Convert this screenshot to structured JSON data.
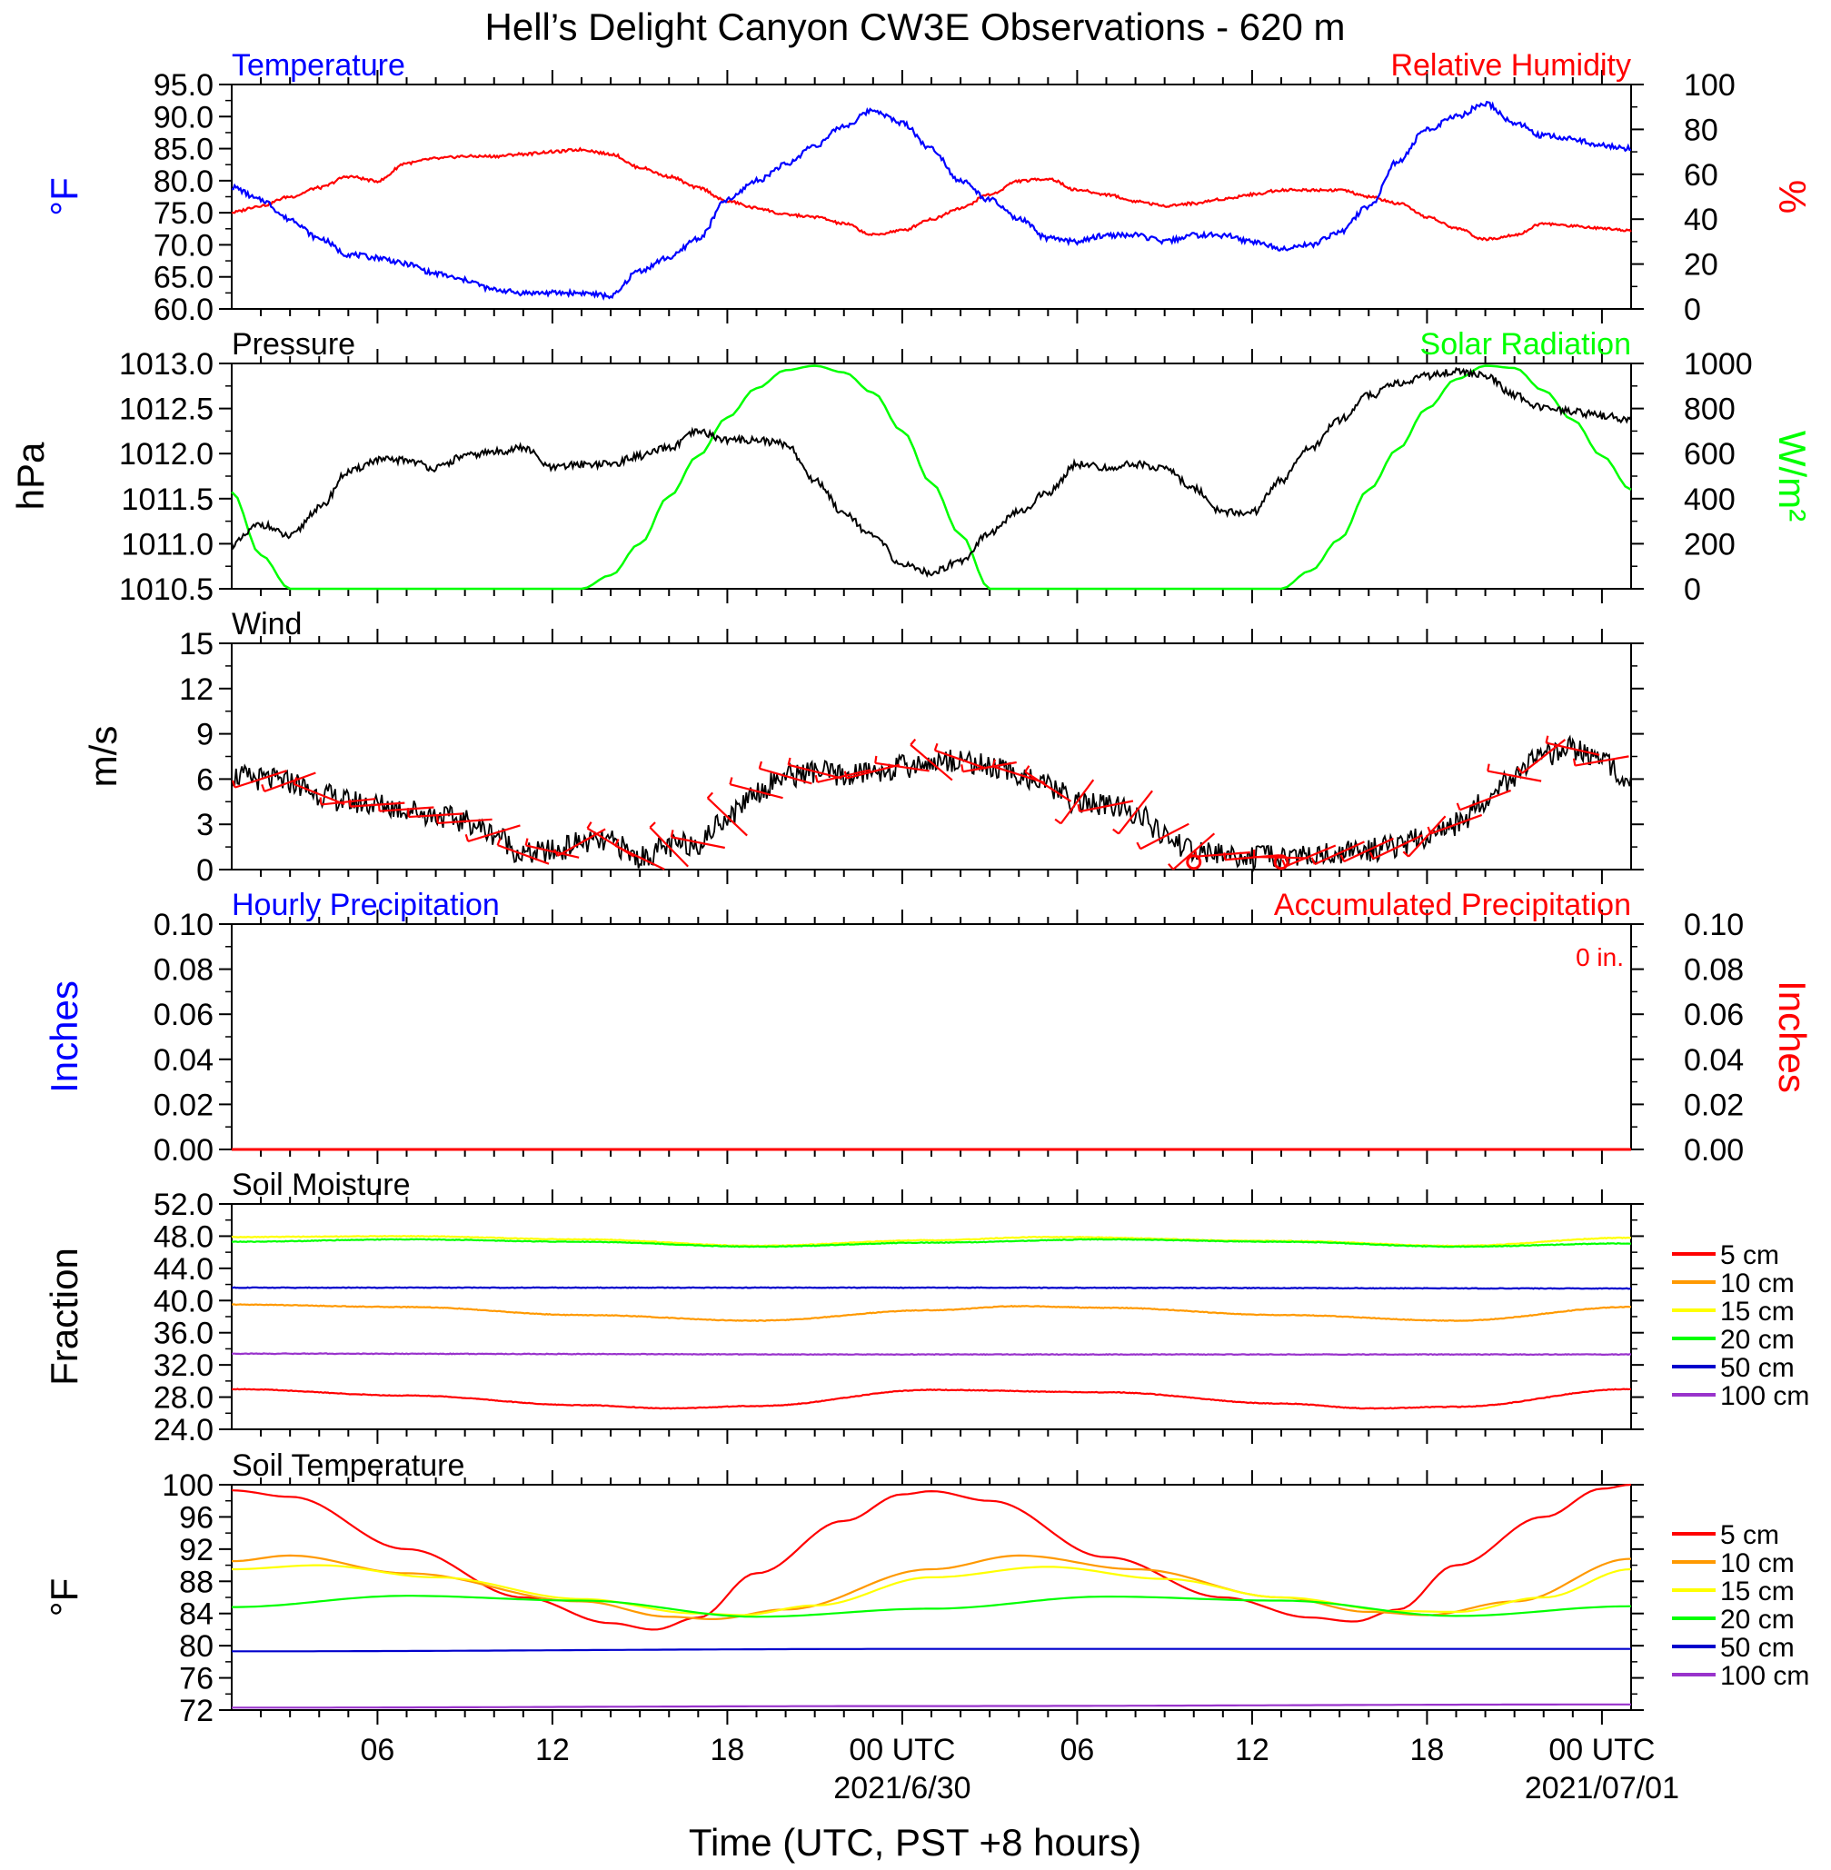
{
  "title": "Hell’s Delight Canyon CW3E Observations - 620 m",
  "xlabel": "Time (UTC, PST +8 hours)",
  "x_ticks": [
    "06",
    "12",
    "18",
    "00 UTC",
    "06",
    "12",
    "18",
    "00 UTC"
  ],
  "x_tick_hours": [
    6,
    12,
    18,
    24,
    30,
    36,
    42,
    48
  ],
  "date_labels": [
    {
      "hour": 24,
      "text": "2021/6/30"
    },
    {
      "hour": 48,
      "text": "2021/07/01"
    }
  ],
  "colors": {
    "temperature": "#0000ff",
    "humidity": "#ff0000",
    "pressure": "#000000",
    "solar": "#00ff00",
    "wind": "#000000",
    "wind_barbs": "#ff0000",
    "precip_hourly": "#0000ff",
    "precip_accum": "#ff0000"
  },
  "panels": {
    "temp_rh": {
      "left_title": "Temperature",
      "right_title": "Relative Humidity",
      "left_unit": "°F",
      "right_unit": "%",
      "left_ticks": [
        "95.0",
        "90.0",
        "85.0",
        "80.0",
        "75.0",
        "70.0",
        "65.0",
        "60.0"
      ],
      "right_ticks": [
        "100",
        "80",
        "60",
        "40",
        "20",
        "0"
      ]
    },
    "pressure_solar": {
      "left_title": "Pressure",
      "right_title": "Solar Radiation",
      "left_unit": "hPa",
      "right_unit": "W/m²",
      "left_ticks": [
        "1013.0",
        "1012.5",
        "1012.0",
        "1011.5",
        "1011.0",
        "1010.5"
      ],
      "right_ticks": [
        "1000",
        "800",
        "600",
        "400",
        "200",
        "0"
      ]
    },
    "wind": {
      "left_title": "Wind",
      "left_unit": "m/s",
      "left_ticks": [
        "15",
        "12",
        "9",
        "6",
        "3",
        "0"
      ]
    },
    "precip": {
      "left_title": "Hourly Precipitation",
      "right_title": "Accumulated Precipitation",
      "total_label": "0 in.",
      "left_unit": "Inches",
      "right_unit": "Inches",
      "left_ticks": [
        "0.10",
        "0.08",
        "0.06",
        "0.04",
        "0.02",
        "0.00"
      ],
      "right_ticks": [
        "0.10",
        "0.08",
        "0.06",
        "0.04",
        "0.02",
        "0.00"
      ]
    },
    "soil_moisture": {
      "left_title": "Soil Moisture",
      "left_unit": "Fraction",
      "left_ticks": [
        "52.0",
        "48.0",
        "44.0",
        "40.0",
        "36.0",
        "32.0",
        "28.0",
        "24.0"
      ],
      "legend": [
        {
          "label": "5 cm",
          "color": "#ff0000"
        },
        {
          "label": "10 cm",
          "color": "#ff9900"
        },
        {
          "label": "15 cm",
          "color": "#ffff00"
        },
        {
          "label": "20 cm",
          "color": "#00ff00"
        },
        {
          "label": "50 cm",
          "color": "#0000cc"
        },
        {
          "label": "100 cm",
          "color": "#9933cc"
        }
      ]
    },
    "soil_temp": {
      "left_title": "Soil Temperature",
      "left_unit": "°F",
      "left_ticks": [
        "100",
        "96",
        "92",
        "88",
        "84",
        "80",
        "76",
        "72"
      ],
      "legend": [
        {
          "label": "5 cm",
          "color": "#ff0000"
        },
        {
          "label": "10 cm",
          "color": "#ff9900"
        },
        {
          "label": "15 cm",
          "color": "#ffff00"
        },
        {
          "label": "20 cm",
          "color": "#00ff00"
        },
        {
          "label": "50 cm",
          "color": "#0000cc"
        },
        {
          "label": "100 cm",
          "color": "#9933cc"
        }
      ]
    }
  },
  "chart_data": [
    {
      "type": "line",
      "title": "Temperature / Relative Humidity",
      "x_unit": "hours from 2021-06-29 01 UTC",
      "xlim": [
        1,
        49
      ],
      "series": [
        {
          "name": "Temperature",
          "axis": "left",
          "ylim": [
            60,
            95
          ],
          "x": [
            1,
            2,
            3,
            4,
            5,
            6,
            7,
            8,
            9,
            10,
            11,
            12,
            13,
            14,
            15,
            16,
            17,
            18,
            19,
            20,
            21,
            22,
            23,
            24,
            25,
            26,
            27,
            28,
            29,
            30,
            31,
            32,
            33,
            34,
            35,
            36,
            37,
            38,
            39,
            40,
            41,
            42,
            43,
            44,
            45,
            46,
            47,
            48,
            49
          ],
          "values": [
            79,
            77,
            74,
            71,
            68.5,
            68,
            67,
            65.5,
            64.5,
            63,
            62.5,
            62.5,
            62.5,
            62,
            66,
            68,
            71,
            77,
            80,
            82.5,
            85.5,
            88.5,
            91,
            89,
            85,
            80,
            77,
            74,
            71,
            70.5,
            71.5,
            71.5,
            70.5,
            71.5,
            71.5,
            70.5,
            69.5,
            70,
            72,
            76,
            83,
            88,
            90,
            92,
            89,
            87,
            86.5,
            85.5,
            85
          ]
        },
        {
          "name": "Relative Humidity",
          "axis": "right",
          "ylim": [
            0,
            100
          ],
          "x": [
            1,
            2,
            3,
            4,
            5,
            6,
            7,
            8,
            9,
            10,
            11,
            12,
            13,
            14,
            15,
            16,
            17,
            18,
            19,
            20,
            21,
            22,
            23,
            24,
            25,
            26,
            27,
            28,
            29,
            30,
            31,
            32,
            33,
            34,
            35,
            36,
            37,
            38,
            39,
            40,
            41,
            42,
            43,
            44,
            45,
            46,
            47,
            48,
            49
          ],
          "values": [
            43,
            46,
            50,
            54,
            59,
            57,
            65,
            67,
            68,
            68,
            69,
            70,
            71,
            69,
            63,
            59,
            54,
            48,
            45,
            42,
            41,
            38,
            33,
            35,
            40,
            45,
            51,
            57,
            58,
            53,
            51,
            48,
            46,
            47,
            49,
            51,
            53,
            53,
            53,
            50,
            47,
            41,
            36,
            31,
            33,
            38,
            37,
            36,
            35
          ]
        }
      ]
    },
    {
      "type": "line",
      "title": "Pressure / Solar Radiation",
      "x_unit": "hours from 2021-06-29 01 UTC",
      "xlim": [
        1,
        49
      ],
      "series": [
        {
          "name": "Pressure",
          "axis": "left",
          "ylim": [
            1010.4,
            1013.2
          ],
          "x": [
            1,
            2,
            3,
            4,
            5,
            6,
            7,
            8,
            9,
            10,
            11,
            12,
            13,
            14,
            15,
            16,
            17,
            18,
            19,
            20,
            21,
            22,
            23,
            24,
            25,
            26,
            27,
            28,
            29,
            30,
            31,
            32,
            33,
            34,
            35,
            36,
            37,
            38,
            39,
            40,
            41,
            42,
            43,
            44,
            45,
            46,
            47,
            48,
            49
          ],
          "values": [
            1010.95,
            1011.2,
            1011.05,
            1011.4,
            1011.85,
            1012.0,
            1012.0,
            1011.9,
            1012.05,
            1012.1,
            1012.15,
            1011.9,
            1011.95,
            1011.95,
            1012.05,
            1012.15,
            1012.35,
            1012.25,
            1012.25,
            1012.2,
            1011.75,
            1011.35,
            1011.05,
            1010.7,
            1010.6,
            1010.75,
            1011.1,
            1011.35,
            1011.6,
            1011.95,
            1011.9,
            1011.95,
            1011.9,
            1011.65,
            1011.35,
            1011.35,
            1011.75,
            1012.15,
            1012.5,
            1012.8,
            1012.95,
            1013.05,
            1013.1,
            1013.05,
            1012.8,
            1012.65,
            1012.6,
            1012.55,
            1012.5
          ]
        },
        {
          "name": "Solar Radiation",
          "axis": "right",
          "ylim": [
            0,
            1000
          ],
          "x": [
            1,
            2,
            3,
            4,
            5,
            6,
            7,
            8,
            9,
            10,
            11,
            12,
            13,
            14,
            15,
            16,
            17,
            18,
            19,
            20,
            21,
            22,
            23,
            24,
            25,
            26,
            27,
            28,
            29,
            30,
            31,
            32,
            33,
            34,
            35,
            36,
            37,
            38,
            39,
            40,
            41,
            42,
            43,
            44,
            45,
            46,
            47,
            48,
            49
          ],
          "values": [
            430,
            150,
            0,
            0,
            0,
            0,
            0,
            0,
            0,
            0,
            0,
            0,
            0,
            60,
            200,
            410,
            590,
            760,
            890,
            970,
            990,
            960,
            870,
            700,
            470,
            240,
            0,
            0,
            0,
            0,
            0,
            0,
            0,
            0,
            0,
            0,
            0,
            80,
            220,
            440,
            620,
            800,
            930,
            990,
            980,
            880,
            750,
            590,
            440
          ]
        }
      ]
    },
    {
      "type": "line",
      "title": "Wind",
      "x_unit": "hours from 2021-06-29 01 UTC",
      "xlim": [
        1,
        49
      ],
      "ylim": [
        0,
        15
      ],
      "series": [
        {
          "name": "Wind speed",
          "x": [
            1,
            2,
            3,
            4,
            5,
            6,
            7,
            8,
            9,
            10,
            11,
            12,
            13,
            14,
            15,
            16,
            17,
            18,
            19,
            20,
            21,
            22,
            23,
            24,
            25,
            26,
            27,
            28,
            29,
            30,
            31,
            32,
            33,
            34,
            35,
            36,
            37,
            38,
            39,
            40,
            41,
            42,
            43,
            44,
            45,
            46,
            47,
            48,
            49
          ],
          "values": [
            6.2,
            6.0,
            5.8,
            5.0,
            4.5,
            4.3,
            4.0,
            3.6,
            3.2,
            2.4,
            1.0,
            1.2,
            1.8,
            1.8,
            0.8,
            1.5,
            1.8,
            3.5,
            5.2,
            6.2,
            6.5,
            6.2,
            6.5,
            6.8,
            7.1,
            7.3,
            6.8,
            6.3,
            5.5,
            4.5,
            4.2,
            3.8,
            2.2,
            1.2,
            1.0,
            0.8,
            0.8,
            0.9,
            1.1,
            1.3,
            1.5,
            2.2,
            3.0,
            4.6,
            6.2,
            7.5,
            8.0,
            7.2,
            6.0
          ]
        }
      ]
    },
    {
      "type": "line",
      "title": "Hourly Precipitation / Accumulated Precipitation",
      "x_unit": "hours from 2021-06-29 01 UTC",
      "xlim": [
        1,
        49
      ],
      "ylim": [
        0,
        0.1
      ],
      "series": [
        {
          "name": "Hourly Precipitation",
          "x": [
            1,
            49
          ],
          "values": [
            0,
            0
          ]
        },
        {
          "name": "Accumulated Precipitation",
          "x": [
            1,
            49
          ],
          "values": [
            0,
            0
          ]
        }
      ]
    },
    {
      "type": "line",
      "title": "Soil Moisture",
      "x_unit": "hours from 2021-06-29 01 UTC",
      "xlim": [
        1,
        49
      ],
      "ylim": [
        24,
        52
      ],
      "series": [
        {
          "name": "5 cm",
          "x": [
            1,
            7,
            13,
            16,
            19,
            25,
            31,
            37,
            40,
            43,
            49
          ],
          "values": [
            29.0,
            28.2,
            27.0,
            26.6,
            26.9,
            28.9,
            28.6,
            27.2,
            26.6,
            26.8,
            29.0
          ]
        },
        {
          "name": "10 cm",
          "x": [
            1,
            7,
            13,
            19,
            25,
            28,
            31,
            37,
            43,
            49
          ],
          "values": [
            39.5,
            39.2,
            38.2,
            37.5,
            38.8,
            39.3,
            39.1,
            38.2,
            37.5,
            39.2
          ]
        },
        {
          "name": "15 cm",
          "x": [
            1,
            7,
            13,
            19,
            25,
            29,
            37,
            43,
            49
          ],
          "values": [
            47.9,
            48.0,
            47.6,
            46.8,
            47.5,
            47.9,
            47.4,
            46.8,
            47.8
          ]
        },
        {
          "name": "20 cm",
          "x": [
            1,
            7,
            13,
            19,
            25,
            31,
            37,
            43,
            49
          ],
          "values": [
            47.3,
            47.6,
            47.3,
            46.7,
            47.2,
            47.6,
            47.3,
            46.7,
            47.1
          ]
        },
        {
          "name": "50 cm",
          "x": [
            1,
            25,
            49
          ],
          "values": [
            41.6,
            41.6,
            41.5
          ]
        },
        {
          "name": "100 cm",
          "x": [
            1,
            25,
            49
          ],
          "values": [
            33.4,
            33.3,
            33.3
          ]
        }
      ]
    },
    {
      "type": "line",
      "title": "Soil Temperature",
      "x_unit": "hours from 2021-06-29 01 UTC",
      "xlim": [
        1,
        49
      ],
      "ylim": [
        72,
        100
      ],
      "series": [
        {
          "name": "5 cm",
          "x": [
            1,
            3,
            7,
            11,
            14,
            15.5,
            17,
            19,
            22,
            24,
            25,
            27,
            31,
            35,
            38,
            39.5,
            41,
            43,
            46,
            48,
            49
          ],
          "values": [
            99.3,
            98.5,
            92.0,
            86.0,
            82.8,
            82.0,
            83.5,
            89.0,
            95.5,
            98.8,
            99.2,
            98.0,
            91.0,
            86.0,
            83.5,
            83.0,
            84.5,
            90.0,
            96.0,
            99.5,
            100
          ]
        },
        {
          "name": "10 cm",
          "x": [
            1,
            3,
            7,
            13,
            16,
            17.5,
            20,
            25,
            28,
            32,
            37,
            40,
            42,
            45,
            49
          ],
          "values": [
            90.5,
            91.2,
            89.0,
            85.5,
            83.6,
            83.3,
            84.5,
            89.5,
            91.2,
            89.5,
            86.0,
            84.2,
            83.8,
            85.5,
            90.8
          ]
        },
        {
          "name": "15 cm",
          "x": [
            1,
            4,
            8,
            13,
            17,
            18.5,
            21,
            25,
            29,
            33,
            37,
            41,
            43,
            46,
            49
          ],
          "values": [
            89.5,
            90.0,
            88.5,
            85.8,
            84.0,
            83.8,
            85.0,
            88.5,
            89.8,
            88.3,
            86.0,
            84.3,
            84.2,
            86.0,
            89.5
          ]
        },
        {
          "name": "20 cm",
          "x": [
            1,
            7,
            13,
            19,
            25,
            31,
            37,
            43,
            49
          ],
          "values": [
            84.8,
            86.2,
            85.6,
            83.6,
            84.6,
            86.1,
            85.6,
            83.7,
            84.9
          ]
        },
        {
          "name": "50 cm",
          "x": [
            1,
            25,
            49
          ],
          "values": [
            79.3,
            79.6,
            79.6
          ]
        },
        {
          "name": "100 cm",
          "x": [
            1,
            25,
            49
          ],
          "values": [
            72.3,
            72.5,
            72.7
          ]
        }
      ]
    }
  ]
}
